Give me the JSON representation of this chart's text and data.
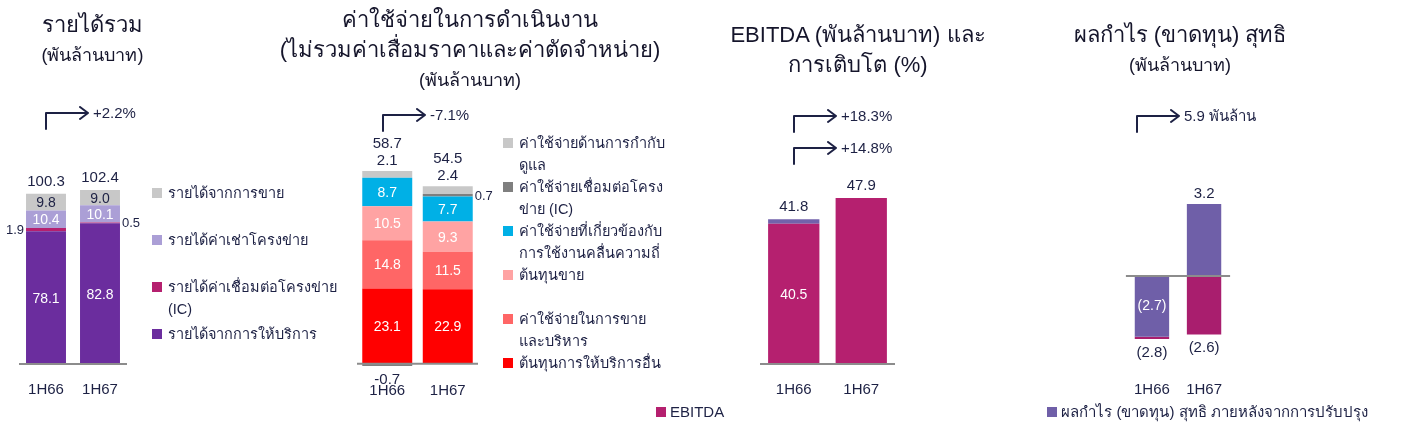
{
  "chart_data": [
    {
      "type": "bar",
      "title": "รายได้รวม",
      "subtitle": "(พันล้านบาท)",
      "categories": [
        "1H66",
        "1H67"
      ],
      "stacked": true,
      "series": [
        {
          "name": "รายได้จากการให้บริการ",
          "color": "#6b2d9e",
          "values": [
            78.1,
            82.8
          ],
          "value_labels": [
            "78.1",
            "82.8"
          ]
        },
        {
          "name": "รายได้ค่าเชื่อมต่อโครงข่าย (IC)",
          "color": "#b5206f",
          "values": [
            1.9,
            0.5
          ],
          "value_labels": [
            "1.9",
            "0.5"
          ]
        },
        {
          "name": "รายได้ค่าเช่าโครงข่าย",
          "color": "#ab9fd6",
          "values": [
            10.4,
            10.1
          ],
          "value_labels": [
            "10.4",
            "10.1"
          ]
        },
        {
          "name": "รายได้จากการขาย",
          "color": "#c8c8c8",
          "values": [
            9.8,
            9.0
          ],
          "value_labels": [
            "9.8",
            "9.0"
          ]
        }
      ],
      "totals": [
        "100.3",
        "102.4"
      ],
      "tick_labels": "x",
      "legend": "right",
      "annotations": [
        "+2.2%"
      ]
    },
    {
      "type": "bar",
      "title": "ค่าใช้จ่ายในการดำเนินงาน\n(ไม่รวมค่าเสื่อมราคาและค่าตัดจำหน่าย)",
      "subtitle": "(พันล้านบาท)",
      "categories": [
        "1H66",
        "1H67"
      ],
      "stacked": true,
      "series": [
        {
          "name": "ต้นทุนการให้บริการอื่น",
          "color": "#ff0000",
          "values": [
            23.1,
            22.9
          ]
        },
        {
          "name": "ค่าใช้จ่ายในการขายและบริหาร",
          "color": "#ff6666",
          "values": [
            14.8,
            11.5
          ]
        },
        {
          "name": "ต้นทุนขาย",
          "color": "#ffa3a3",
          "values": [
            10.5,
            9.3
          ]
        },
        {
          "name": "ค่าใช้จ่ายที่เกี่ยวข้องกับการใช้งานคลื่นความถี่",
          "color": "#00b0e6",
          "values": [
            8.7,
            7.7
          ]
        },
        {
          "name": "ค่าใช้จ่ายเชื่อมต่อโครงข่าย (IC)",
          "color": "#7f7f7f",
          "values": [
            -0.7,
            0.7
          ]
        },
        {
          "name": "ค่าใช้จ่ายด้านการกำกับดูแล",
          "color": "#c8c8c8",
          "values": [
            2.1,
            2.4
          ]
        }
      ],
      "data_labels": true,
      "totals": [
        "58.7",
        "54.5"
      ],
      "tick_labels": "x",
      "legend": "right",
      "annotations": [
        "-7.1%"
      ]
    },
    {
      "type": "bar",
      "title": "EBITDA (พันล้านบาท) และ\nการเติบโต (%)",
      "categories": [
        "1H66",
        "1H67"
      ],
      "stacked": true,
      "series": [
        {
          "name": "EBITDA",
          "color": "#b5206f",
          "values": [
            40.5,
            47.9
          ],
          "value_labels": [
            "40.5",
            null
          ]
        },
        {
          "color": "#7262ab",
          "values": [
            1.3,
            null
          ]
        }
      ],
      "totals": [
        "41.8",
        "47.9"
      ],
      "tick_labels": "x",
      "legend": "bottom left",
      "annotations": [
        "+18.3%",
        "+14.8%"
      ]
    },
    {
      "type": "bar",
      "title": "ผลกำไร (ขาดทุน) สุทธิ",
      "subtitle": "(พันล้านบาท)",
      "categories": [
        "1H66",
        "1H67"
      ],
      "stacked": true,
      "series": [
        {
          "name": "ผลกำไร (ขาดทุน) สุทธิ ภายหลังจากการปรับปรุง",
          "color": "#6f5fa8",
          "values": [
            -2.7,
            3.2
          ],
          "value_labels": [
            "(2.7)",
            "3.2"
          ]
        },
        {
          "color": "#a91e6e",
          "values": [
            -0.1,
            -2.6
          ],
          "value_labels": [
            null,
            "(2.6)"
          ]
        }
      ],
      "totals": [
        "(2.8)",
        null
      ],
      "tick_labels": "x",
      "legend": "bottom",
      "annotations": [
        "5.9 พันล้าน"
      ]
    }
  ]
}
